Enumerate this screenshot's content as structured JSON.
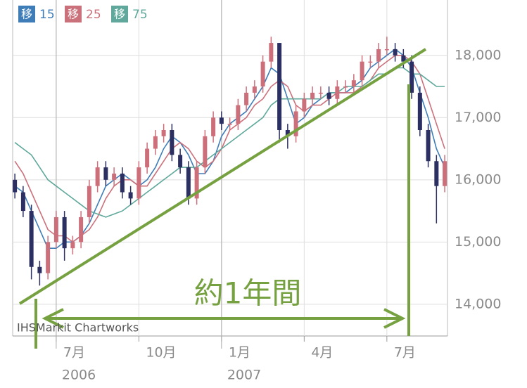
{
  "chart_data": {
    "type": "candlestick",
    "x": [
      -1.5,
      -1.2,
      -0.9,
      -0.6,
      -0.3,
      0,
      0.3,
      0.6,
      0.9,
      1.2,
      1.5,
      1.8,
      2.1,
      2.4,
      2.7,
      3,
      3.3,
      3.6,
      3.9,
      4.2,
      4.5,
      4.8,
      5.1,
      5.4,
      5.7,
      6,
      6.3,
      6.6,
      6.9,
      7.2,
      7.5,
      7.8,
      8.1,
      8.4,
      8.7,
      9,
      9.3,
      9.6,
      9.9,
      10.2,
      10.5,
      10.8,
      11.1,
      11.4,
      11.7,
      12,
      12.3,
      12.6,
      12.9,
      13.2,
      13.5,
      13.8,
      14.1
    ],
    "open": [
      16000,
      15800,
      15500,
      14600,
      14500,
      15000,
      15400,
      14900,
      15000,
      15400,
      15900,
      16200,
      16000,
      16100,
      15800,
      15700,
      16200,
      16500,
      16700,
      16800,
      16400,
      16200,
      15700,
      16200,
      16700,
      17000,
      16900,
      16900,
      17200,
      17400,
      17500,
      17900,
      18200,
      16800,
      16700,
      17100,
      17300,
      17400,
      17400,
      17300,
      17500,
      17500,
      17600,
      17900,
      17900,
      18100,
      18100,
      18000,
      17900,
      17400,
      16800,
      16300,
      15900
    ],
    "high": [
      16100,
      15900,
      15600,
      14700,
      15100,
      15500,
      15500,
      15100,
      15500,
      16000,
      16300,
      16300,
      16200,
      16200,
      15900,
      16300,
      16600,
      16800,
      16900,
      16900,
      16500,
      16300,
      16300,
      16800,
      17100,
      17100,
      17000,
      17300,
      17500,
      17600,
      18000,
      18300,
      18200,
      16900,
      17200,
      17400,
      17500,
      17500,
      17500,
      17600,
      17600,
      17700,
      18000,
      18000,
      18200,
      18300,
      18200,
      18100,
      18000,
      17500,
      16900,
      16400,
      16400
    ],
    "low": [
      15700,
      15400,
      14400,
      14300,
      14400,
      14900,
      14700,
      14800,
      14900,
      15300,
      15800,
      15900,
      15900,
      15700,
      15600,
      15600,
      16100,
      16400,
      16600,
      16300,
      16100,
      15600,
      15600,
      16100,
      16600,
      16800,
      16800,
      16800,
      17100,
      17300,
      17400,
      17800,
      16600,
      16500,
      16600,
      17000,
      17200,
      17300,
      17200,
      17200,
      17400,
      17400,
      17500,
      17800,
      17800,
      18000,
      17900,
      17800,
      17300,
      16700,
      16200,
      15300,
      15800
    ],
    "close": [
      15800,
      15500,
      14600,
      14500,
      15000,
      15400,
      14900,
      15000,
      15400,
      15900,
      16200,
      16000,
      16100,
      15800,
      15700,
      16200,
      16500,
      16700,
      16800,
      16400,
      16200,
      15700,
      16200,
      16700,
      17000,
      16900,
      16900,
      17200,
      17400,
      17500,
      17900,
      18200,
      16800,
      16700,
      17100,
      17300,
      17400,
      17400,
      17300,
      17500,
      17500,
      17600,
      17900,
      17900,
      18100,
      18100,
      18000,
      17900,
      17400,
      16800,
      16300,
      15900,
      16300
    ],
    "up_color": "#cc6f7b",
    "down_color": "#2b2f62",
    "ma_label": "移",
    "series": [
      {
        "name": "15",
        "color": "#3f7db8",
        "values": [
          15900,
          15800,
          15500,
          15200,
          14900,
          14900,
          15000,
          15000,
          15100,
          15300,
          15600,
          15900,
          16000,
          16100,
          16000,
          15900,
          16000,
          16200,
          16500,
          16700,
          16600,
          16400,
          16100,
          16100,
          16300,
          16700,
          16900,
          17000,
          17100,
          17300,
          17500,
          17800,
          17700,
          17300,
          16900,
          17000,
          17200,
          17300,
          17400,
          17400,
          17400,
          17500,
          17600,
          17800,
          17900,
          18000,
          18100,
          18000,
          17800,
          17400,
          17000,
          16500,
          16200
        ]
      },
      {
        "name": "25",
        "color": "#cb717c",
        "values": [
          16300,
          16100,
          15800,
          15500,
          15200,
          15100,
          15100,
          15000,
          15100,
          15200,
          15400,
          15700,
          15900,
          16000,
          16000,
          15900,
          15900,
          16100,
          16300,
          16500,
          16600,
          16500,
          16300,
          16200,
          16300,
          16500,
          16800,
          16900,
          17000,
          17200,
          17300,
          17500,
          17600,
          17500,
          17200,
          17100,
          17200,
          17200,
          17300,
          17400,
          17400,
          17400,
          17500,
          17600,
          17800,
          17900,
          18000,
          18000,
          17900,
          17700,
          17300,
          16900,
          16500
        ]
      },
      {
        "name": "75",
        "color": "#5fa89b",
        "values": [
          16600,
          16500,
          16400,
          16200,
          16000,
          15900,
          15800,
          15700,
          15600,
          15500,
          15450,
          15400,
          15450,
          15500,
          15600,
          15700,
          15800,
          15900,
          16000,
          16100,
          16200,
          16200,
          16200,
          16300,
          16400,
          16500,
          16600,
          16700,
          16800,
          16900,
          17000,
          17200,
          17300,
          17300,
          17300,
          17300,
          17300,
          17300,
          17400,
          17400,
          17500,
          17500,
          17500,
          17600,
          17700,
          17700,
          17800,
          17800,
          17700,
          17700,
          17600,
          17500,
          17500
        ]
      }
    ],
    "xlim": [
      -1.58,
      14.2
    ],
    "xticks": [
      {
        "value": 0,
        "label": "7月"
      },
      {
        "value": 3,
        "label": "10月"
      },
      {
        "value": 6,
        "label": "1月"
      },
      {
        "value": 9,
        "label": "4月"
      },
      {
        "value": 12,
        "label": "7月"
      }
    ],
    "year_ticks": [
      {
        "value": 0,
        "label": "2006"
      },
      {
        "value": 6,
        "label": "2007"
      }
    ],
    "ylim": [
      13490,
      18890
    ],
    "yticks": [
      {
        "value": 14000,
        "label": "14,000"
      },
      {
        "value": 15000,
        "label": "15,000"
      },
      {
        "value": 16000,
        "label": "16,000"
      },
      {
        "value": 17000,
        "label": "17,000"
      },
      {
        "value": 18000,
        "label": "18,000"
      }
    ],
    "grid": true,
    "legend": "top-left",
    "annotation": "約1年間",
    "source": "IHSMarkit Chartworks"
  }
}
